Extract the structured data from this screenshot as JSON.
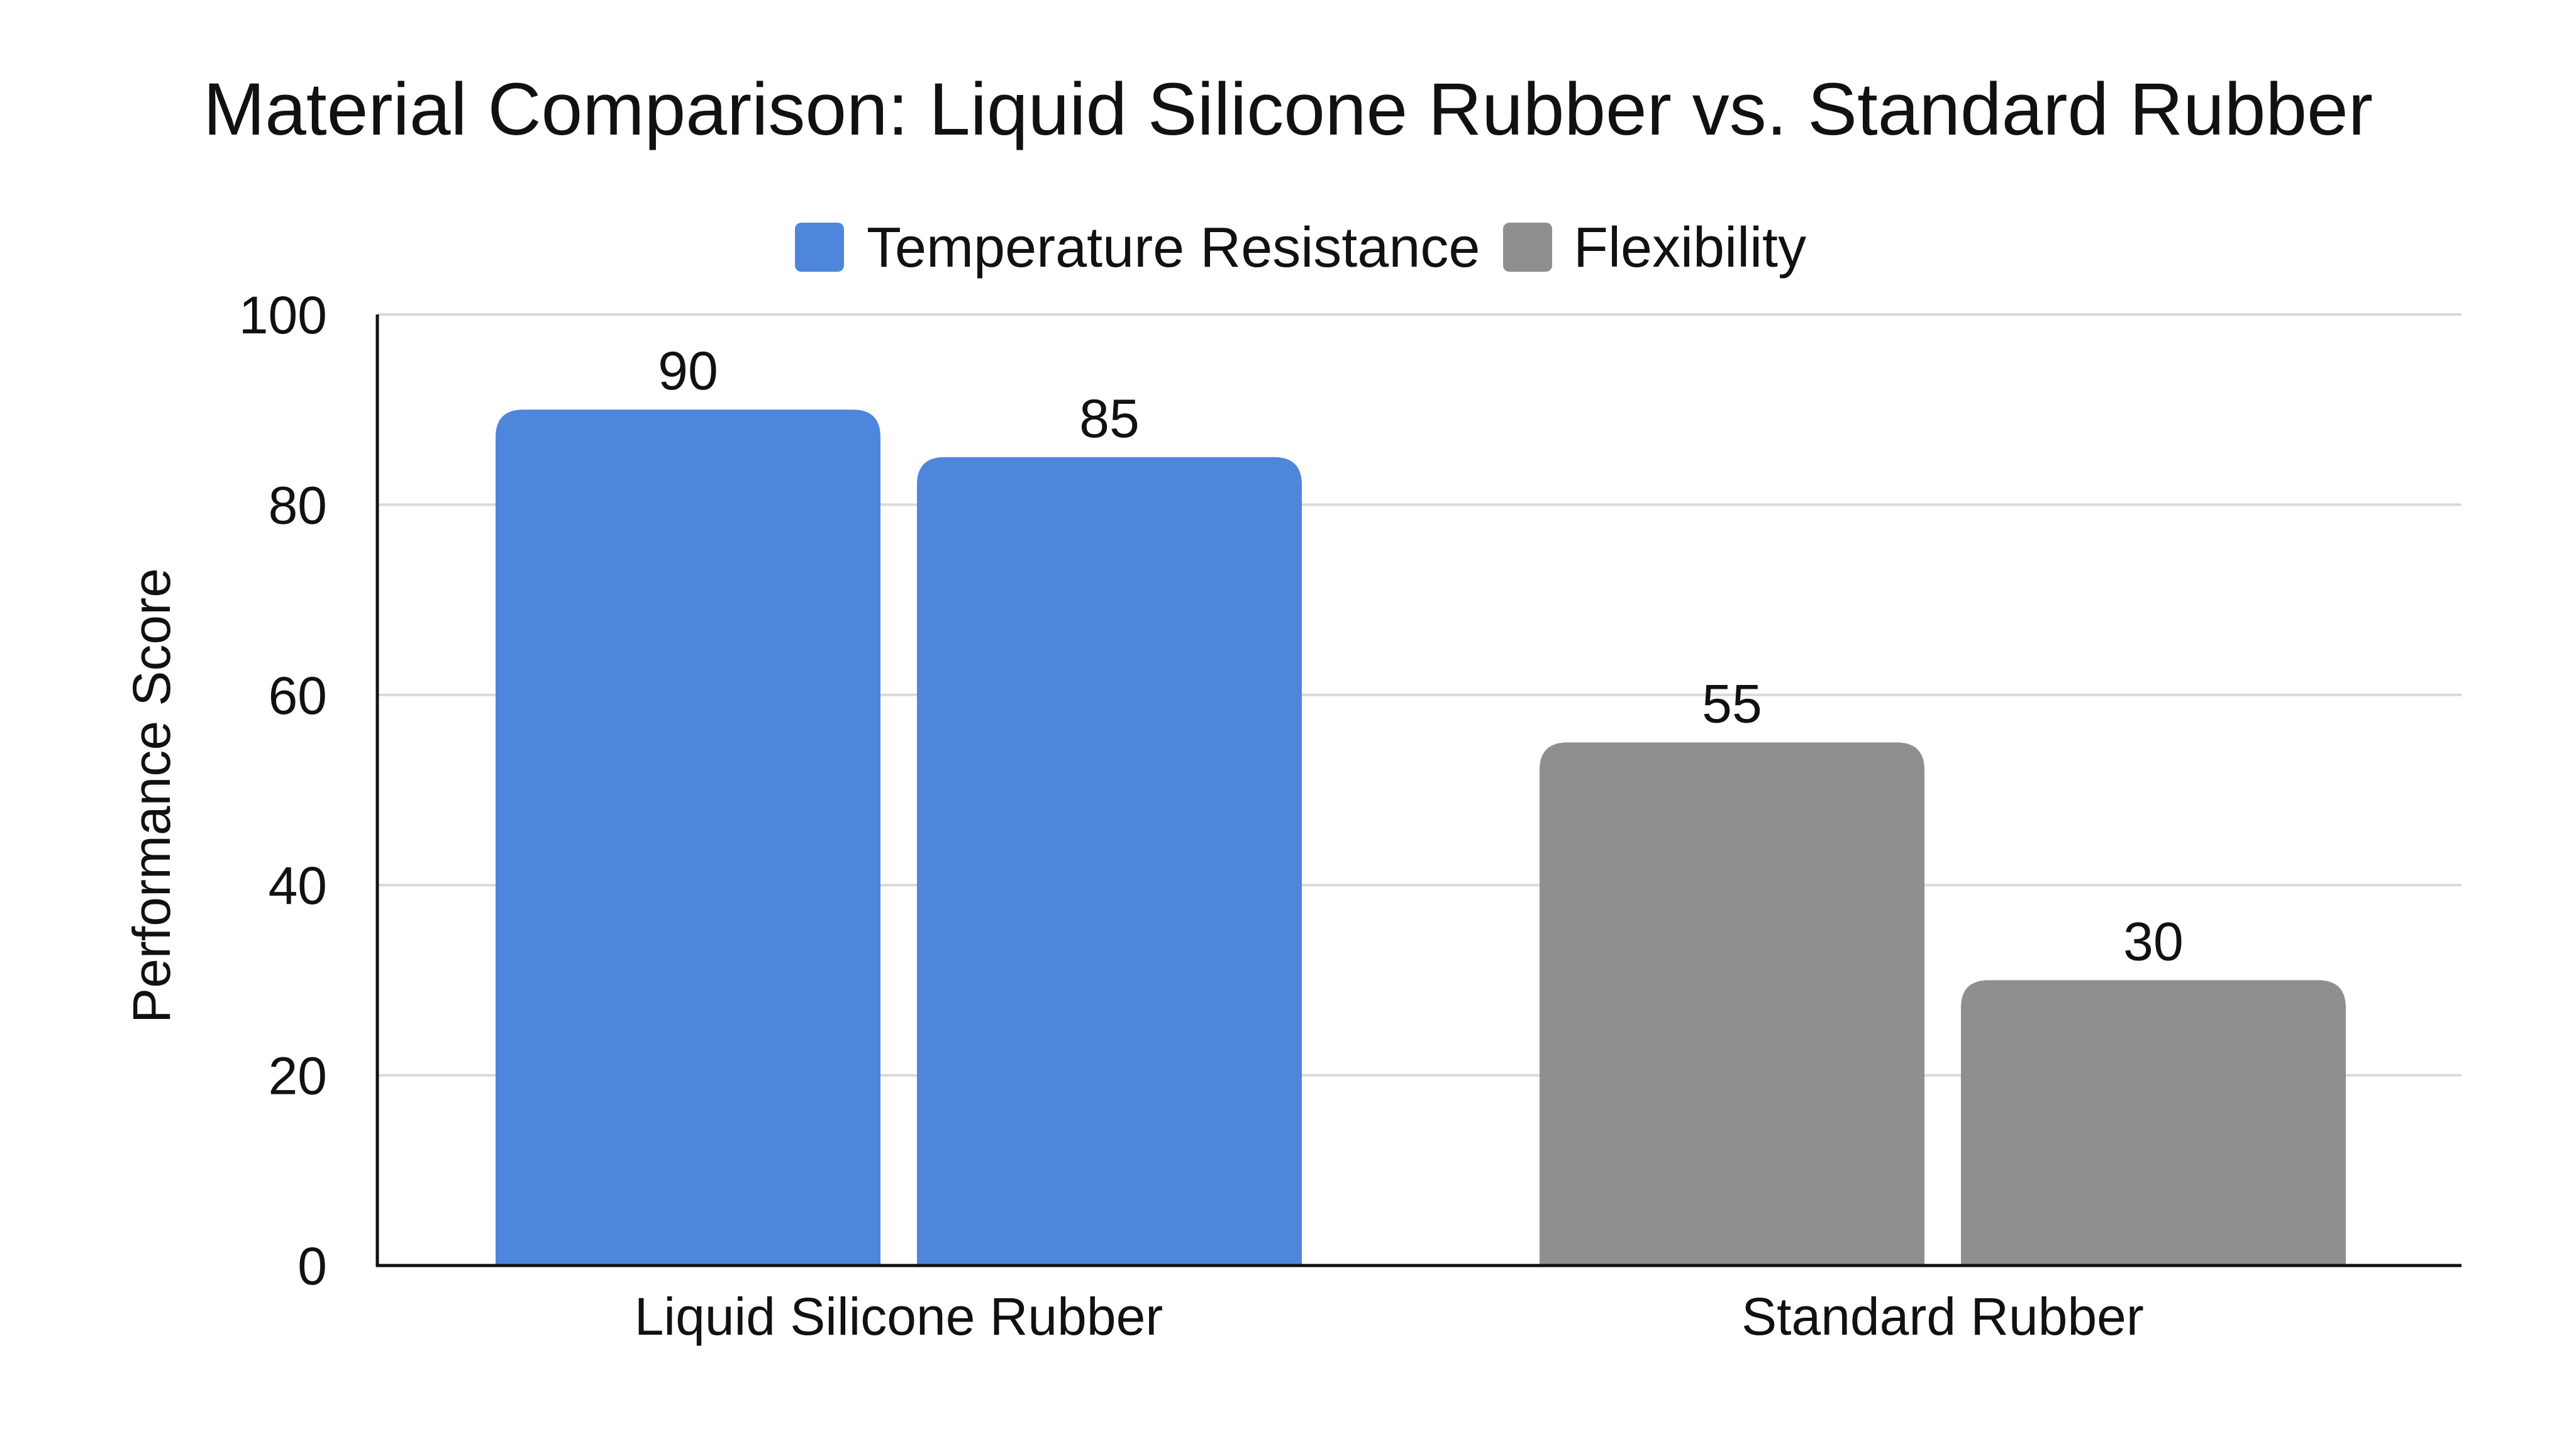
{
  "colors": {
    "temperature_resistance": "#4e86dc",
    "flexibility": "#8f8e90",
    "gridline": "#d9d9d9",
    "axis": "#111111",
    "text": "#111111"
  },
  "chart_data": {
    "type": "bar",
    "title": "Material Comparison: Liquid Silicone Rubber vs. Standard Rubber",
    "xlabel": "",
    "ylabel": "Performance Score",
    "ylim": [
      0,
      100
    ],
    "yticks": [
      0,
      20,
      40,
      60,
      80,
      100
    ],
    "grid": true,
    "legend_position": "top-center",
    "groups": [
      {
        "label": "Liquid Silicone Rubber",
        "bars": [
          {
            "value": 90,
            "color_key": "temperature_resistance",
            "label": "90"
          },
          {
            "value": 85,
            "color_key": "temperature_resistance",
            "label": "85"
          }
        ]
      },
      {
        "label": "Standard Rubber",
        "bars": [
          {
            "value": 55,
            "color_key": "flexibility",
            "label": "55"
          },
          {
            "value": 30,
            "color_key": "flexibility",
            "label": "30"
          }
        ]
      }
    ],
    "legend": [
      {
        "name": "Temperature Resistance",
        "color_key": "temperature_resistance"
      },
      {
        "name": "Flexibility",
        "color_key": "flexibility"
      }
    ]
  }
}
